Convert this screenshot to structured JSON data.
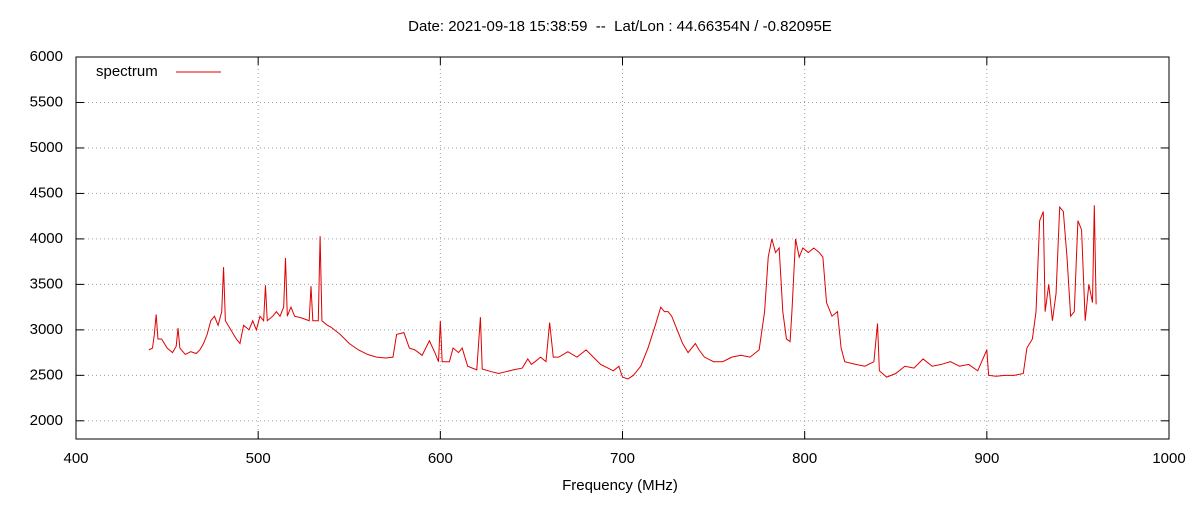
{
  "chart_data": {
    "type": "line",
    "title": "Date: 2021-09-18 15:38:59  --  Lat/Lon : 44.66354N / -0.82095E",
    "x_label": "Frequency (MHz)",
    "xlim": [
      400,
      1000
    ],
    "xticks": [
      400,
      500,
      600,
      700,
      800,
      900,
      1000
    ],
    "ylim": [
      1800,
      6000
    ],
    "yticks": [
      2000,
      2500,
      3000,
      3500,
      4000,
      4500,
      5000,
      5500,
      6000
    ],
    "grid": true,
    "legend": "top-left",
    "x": [
      440,
      442,
      443,
      444,
      445,
      447,
      450,
      453,
      455,
      456,
      457,
      460,
      463,
      466,
      468,
      470,
      472,
      474,
      476,
      478,
      480,
      481,
      482,
      485,
      488,
      490,
      492,
      495,
      497,
      499,
      501,
      503,
      504,
      505,
      508,
      510,
      512,
      514,
      515,
      516,
      518,
      520,
      524,
      528,
      529,
      530,
      533,
      534,
      535,
      538,
      540,
      545,
      550,
      555,
      560,
      565,
      570,
      574,
      576,
      580,
      583,
      586,
      590,
      594,
      597,
      599,
      600,
      601,
      605,
      607,
      610,
      612,
      615,
      620,
      622,
      623,
      628,
      632,
      636,
      640,
      645,
      648,
      650,
      652,
      655,
      658,
      660,
      662,
      665,
      670,
      675,
      680,
      684,
      688,
      692,
      695,
      698,
      700,
      703,
      706,
      710,
      714,
      718,
      721,
      723,
      725,
      727,
      730,
      733,
      736,
      740,
      742,
      745,
      750,
      755,
      760,
      765,
      770,
      775,
      778,
      780,
      782,
      784,
      786,
      788,
      790,
      792,
      793,
      795,
      797,
      799,
      802,
      805,
      808,
      810,
      812,
      815,
      818,
      820,
      822,
      828,
      833,
      838,
      840,
      841,
      845,
      850,
      855,
      860,
      865,
      870,
      875,
      880,
      885,
      890,
      895,
      900,
      901,
      905,
      910,
      915,
      920,
      922,
      925,
      927,
      929,
      931,
      932,
      934,
      936,
      938,
      940,
      942,
      944,
      946,
      948,
      950,
      952,
      954,
      956,
      958,
      959,
      960
    ],
    "series": [
      {
        "name": "spectrum",
        "color": "#e00000",
        "values": [
          2780,
          2800,
          2950,
          3170,
          2900,
          2900,
          2800,
          2750,
          2820,
          3020,
          2800,
          2730,
          2760,
          2740,
          2780,
          2850,
          2950,
          3100,
          3150,
          3050,
          3200,
          3690,
          3100,
          3000,
          2900,
          2850,
          3050,
          3000,
          3100,
          3000,
          3150,
          3100,
          3490,
          3100,
          3150,
          3200,
          3150,
          3250,
          3790,
          3150,
          3250,
          3150,
          3130,
          3100,
          3480,
          3100,
          3100,
          4030,
          3100,
          3050,
          3030,
          2950,
          2850,
          2780,
          2730,
          2700,
          2690,
          2700,
          2950,
          2970,
          2800,
          2780,
          2720,
          2880,
          2750,
          2650,
          3100,
          2650,
          2650,
          2800,
          2750,
          2800,
          2600,
          2560,
          3140,
          2570,
          2540,
          2520,
          2540,
          2560,
          2580,
          2680,
          2620,
          2650,
          2700,
          2650,
          3080,
          2700,
          2700,
          2760,
          2700,
          2780,
          2700,
          2620,
          2580,
          2550,
          2600,
          2480,
          2460,
          2500,
          2600,
          2800,
          3050,
          3250,
          3200,
          3200,
          3150,
          3000,
          2850,
          2750,
          2850,
          2780,
          2700,
          2650,
          2650,
          2700,
          2720,
          2700,
          2780,
          3200,
          3800,
          4000,
          3850,
          3900,
          3200,
          2900,
          2870,
          3200,
          4000,
          3800,
          3900,
          3850,
          3900,
          3850,
          3800,
          3300,
          3150,
          3200,
          2800,
          2650,
          2620,
          2600,
          2650,
          3070,
          2550,
          2480,
          2520,
          2600,
          2580,
          2680,
          2600,
          2620,
          2650,
          2600,
          2620,
          2550,
          2780,
          2500,
          2490,
          2500,
          2500,
          2520,
          2800,
          2900,
          3200,
          4200,
          4300,
          3200,
          3500,
          3100,
          3400,
          4350,
          4300,
          3800,
          3150,
          3200,
          4200,
          4100,
          3100,
          3500,
          3300,
          4370,
          3280
        ]
      }
    ]
  }
}
